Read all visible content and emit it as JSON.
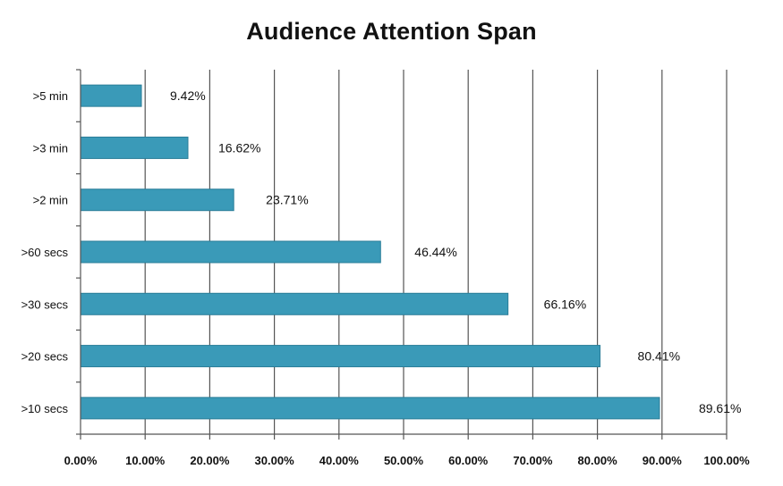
{
  "chart_data": {
    "type": "bar",
    "orientation": "horizontal",
    "title": "Audience Attention Span",
    "categories": [
      ">5 min",
      ">3 min",
      ">2 min",
      ">60 secs",
      ">30 secs",
      ">20 secs",
      ">10 secs"
    ],
    "values": [
      9.42,
      16.62,
      23.71,
      46.44,
      66.16,
      80.41,
      89.61
    ],
    "data_labels": [
      "9.42%",
      "16.62%",
      "23.71%",
      "46.44%",
      "66.16%",
      "80.41%",
      "89.61%"
    ],
    "xlim": [
      0,
      100
    ],
    "x_ticks": [
      0,
      10,
      20,
      30,
      40,
      50,
      60,
      70,
      80,
      90,
      100
    ],
    "x_tick_labels": [
      "0.00%",
      "10.00%",
      "20.00%",
      "30.00%",
      "40.00%",
      "50.00%",
      "60.00%",
      "70.00%",
      "80.00%",
      "90.00%",
      "100.00%"
    ],
    "xlabel": "",
    "ylabel": "",
    "grid": true,
    "legend": "none",
    "bar_color": "#3a9ab8",
    "bar_edge_color": "#2a7d98",
    "grid_color": "#555555"
  }
}
